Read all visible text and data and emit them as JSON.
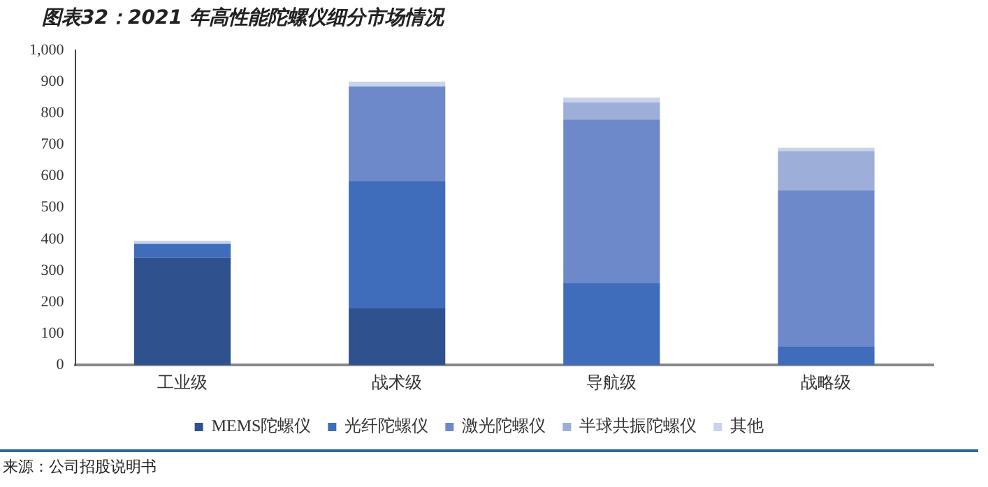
{
  "chart_data": {
    "type": "bar",
    "title": "图表32：2021 年高性能陀螺仪细分市场情况",
    "stacked": true,
    "legend": "bottom",
    "grid": false,
    "categories": [
      "工业级",
      "战术级",
      "导航级",
      "战略级"
    ],
    "series": [
      {
        "name": "MEMS陀螺仪",
        "color": "#2f528f",
        "values": [
          340,
          180,
          0,
          0
        ]
      },
      {
        "name": "光纤陀螺仪",
        "color": "#3f6dbb",
        "values": [
          45,
          405,
          260,
          60
        ]
      },
      {
        "name": "激光陀螺仪",
        "color": "#6d89ca",
        "values": [
          0,
          300,
          520,
          495
        ]
      },
      {
        "name": "半球共振陀螺仪",
        "color": "#9daed8",
        "values": [
          0,
          0,
          55,
          125
        ]
      },
      {
        "name": "其他",
        "color": "#c9d3ec",
        "values": [
          10,
          15,
          15,
          10
        ]
      }
    ],
    "ylim": [
      0,
      1000
    ],
    "yticks": [
      0,
      100,
      200,
      300,
      400,
      500,
      600,
      700,
      800,
      900,
      {
        "value": 1000,
        "label": "1,000"
      }
    ],
    "annotations": [
      "来源：公司招股说明书"
    ]
  }
}
